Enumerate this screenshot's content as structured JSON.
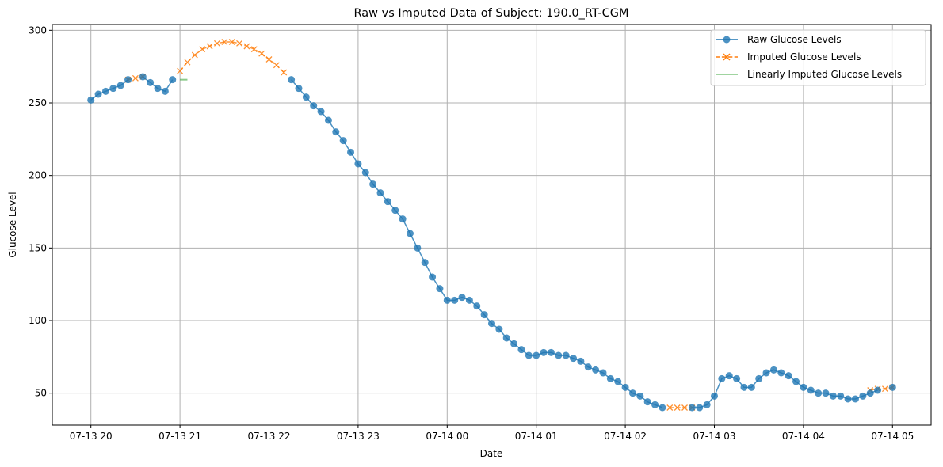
{
  "chart_data": {
    "type": "line",
    "title": "Raw vs Imputed Data of Subject: 190.0_RT-CGM",
    "xlabel": "Date",
    "ylabel": "Glucose Level",
    "x_start": "07-13 20:00",
    "x_tick_labels": [
      "07-13 20",
      "07-13 21",
      "07-13 22",
      "07-13 23",
      "07-14 00",
      "07-14 01",
      "07-14 02",
      "07-14 03",
      "07-14 04",
      "07-14 05"
    ],
    "y_ticks": [
      50,
      100,
      150,
      200,
      250,
      300
    ],
    "xlim_minutes": [
      -26,
      566
    ],
    "ylim": [
      28,
      304
    ],
    "grid": true,
    "legend_position": "top-right",
    "colors": {
      "raw": "#1f77b4",
      "imputed": "#ff7f0e",
      "linear": "#2ca02c",
      "grid": "#b0b0b0"
    },
    "series": [
      {
        "name": "Raw Glucose Levels",
        "style": "line-circle",
        "segments": [
          {
            "start_minute": 0,
            "values": [
              252,
              256,
              258,
              260,
              262,
              266
            ]
          },
          {
            "start_minute": 35,
            "values": [
              268,
              264,
              260,
              258,
              266
            ]
          },
          {
            "start_minute": 135,
            "values": [
              266,
              260,
              254,
              248,
              244,
              238,
              230,
              224,
              216,
              208,
              202,
              194,
              188,
              182,
              176,
              170,
              160,
              150,
              140,
              130,
              122,
              114,
              114,
              116,
              114,
              110,
              104,
              98,
              94,
              88,
              84,
              80,
              76,
              76,
              78,
              78,
              76,
              76,
              74,
              72,
              68,
              66,
              64,
              60,
              58,
              54,
              50,
              48,
              44,
              42,
              40
            ]
          },
          {
            "start_minute": 405,
            "values": [
              40,
              40,
              42,
              48,
              60,
              62,
              60,
              54,
              54,
              60,
              64,
              66,
              64,
              62,
              58,
              54,
              52,
              50,
              50,
              48,
              48,
              46,
              46,
              48,
              50,
              52
            ]
          },
          {
            "start_minute": 540,
            "values": [
              54
            ]
          }
        ]
      },
      {
        "name": "Imputed Glucose Levels",
        "style": "dashed-x",
        "segments": [
          {
            "start_minute": 25,
            "values": [
              266,
              267,
              268
            ]
          },
          {
            "start_minute": 60,
            "values": [
              272,
              278,
              283,
              287,
              289,
              291,
              292,
              292,
              291,
              289,
              287,
              284,
              280,
              276,
              271
            ]
          },
          {
            "start_minute": 390,
            "values": [
              40,
              40,
              40,
              40
            ]
          },
          {
            "start_minute": 525,
            "values": [
              52,
              53,
              53,
              54
            ]
          }
        ]
      },
      {
        "name": "Linearly Imputed Glucose Levels",
        "style": "solid-line",
        "segments": [
          {
            "start_minute": 60,
            "values": [
              266,
              266
            ]
          },
          {
            "start_minute": 130,
            "values": [
              266
            ]
          }
        ]
      }
    ]
  }
}
